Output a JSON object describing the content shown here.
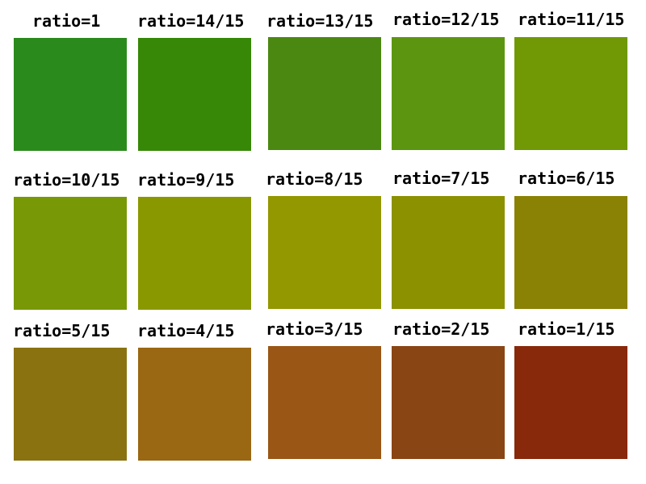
{
  "swatches": [
    {
      "label": "ratio=1",
      "color": "#2a8a1c"
    },
    {
      "label": "ratio=14/15",
      "color": "#368806"
    },
    {
      "label": "ratio=13/15",
      "color": "#4b8811"
    },
    {
      "label": "ratio=12/15",
      "color": "#5c9610"
    },
    {
      "label": "ratio=11/15",
      "color": "#709905"
    },
    {
      "label": "ratio=10/15",
      "color": "#789805"
    },
    {
      "label": "ratio=9/15",
      "color": "#8a9800"
    },
    {
      "label": "ratio=8/15",
      "color": "#939700"
    },
    {
      "label": "ratio=7/15",
      "color": "#8c9100"
    },
    {
      "label": "ratio=6/15",
      "color": "#8a8205"
    },
    {
      "label": "ratio=5/15",
      "color": "#8a7210"
    },
    {
      "label": "ratio=4/15",
      "color": "#9a6712"
    },
    {
      "label": "ratio=3/15",
      "color": "#9a5614"
    },
    {
      "label": "ratio=2/15",
      "color": "#8a4514"
    },
    {
      "label": "ratio=1/15",
      "color": "#88290c"
    }
  ]
}
